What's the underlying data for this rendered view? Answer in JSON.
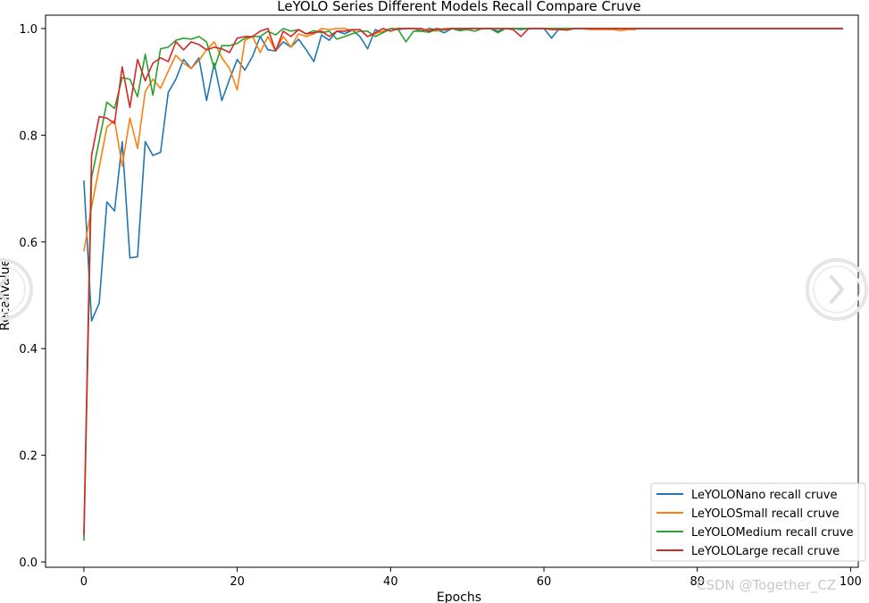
{
  "chart_data": {
    "type": "line",
    "title": "LeYOLO Series Different Models Recall Compare Cruve",
    "xlabel": "Epochs",
    "ylabel": "RecallValue",
    "xlim": [
      -5,
      101
    ],
    "ylim": [
      -0.01,
      1.025
    ],
    "xticks": [
      0,
      20,
      40,
      60,
      80,
      100
    ],
    "xtick_labels": [
      "0",
      "20",
      "40",
      "60",
      "80",
      "100"
    ],
    "yticks": [
      0.0,
      0.2,
      0.4,
      0.6,
      0.8,
      1.0
    ],
    "ytick_labels": [
      "0.0",
      "0.2",
      "0.4",
      "0.6",
      "0.8",
      "1.0"
    ],
    "grid": false,
    "legend_position": "lower-right",
    "series": [
      {
        "name": "LeYOLONano recall cruve",
        "color": "#1f77b4",
        "x": [
          0,
          1,
          2,
          3,
          4,
          5,
          6,
          7,
          8,
          9,
          10,
          11,
          12,
          13,
          14,
          15,
          16,
          17,
          18,
          19,
          20,
          21,
          22,
          23,
          24,
          25,
          26,
          27,
          28,
          29,
          30,
          31,
          32,
          33,
          34,
          35,
          36,
          37,
          38,
          39,
          40,
          41,
          42,
          43,
          44,
          45,
          46,
          47,
          48,
          49,
          50,
          51,
          52,
          53,
          54,
          55,
          56,
          57,
          58,
          59,
          60,
          61,
          62,
          63,
          64,
          65,
          66,
          67,
          68,
          69,
          70,
          71,
          72,
          73,
          74,
          75,
          76,
          77,
          78,
          79,
          80,
          81,
          82,
          83,
          84,
          85,
          86,
          87,
          88,
          89,
          90,
          91,
          92,
          93,
          94,
          95,
          96,
          97,
          98,
          99
        ],
        "values": [
          0.715,
          0.452,
          0.485,
          0.675,
          0.658,
          0.788,
          0.57,
          0.572,
          0.788,
          0.762,
          0.768,
          0.88,
          0.905,
          0.942,
          0.925,
          0.945,
          0.865,
          0.935,
          0.865,
          0.905,
          0.942,
          0.922,
          0.948,
          0.985,
          0.96,
          0.958,
          0.975,
          0.965,
          0.98,
          0.96,
          0.938,
          0.988,
          0.978,
          0.995,
          0.99,
          0.997,
          0.985,
          0.962,
          0.998,
          0.992,
          1.0,
          0.998,
          1.0,
          1.0,
          0.995,
          1.0,
          0.998,
          0.992,
          1.0,
          0.998,
          1.0,
          1.0,
          1.0,
          1.0,
          0.995,
          1.0,
          1.0,
          0.998,
          1.0,
          1.0,
          1.0,
          0.982,
          1.0,
          1.0,
          1.0,
          1.0,
          1.0,
          1.0,
          1.0,
          1.0,
          1.0,
          1.0,
          1.0,
          1.0,
          1.0,
          1.0,
          1.0,
          1.0,
          1.0,
          1.0,
          1.0,
          1.0,
          1.0,
          1.0,
          1.0,
          1.0,
          1.0,
          1.0,
          1.0,
          1.0,
          1.0,
          1.0,
          1.0,
          1.0,
          1.0,
          1.0,
          1.0,
          1.0,
          1.0,
          1.0
        ]
      },
      {
        "name": "LeYOLOSmall recall cruve",
        "color": "#ff7f0e",
        "x": [
          0,
          1,
          2,
          3,
          4,
          5,
          6,
          7,
          8,
          9,
          10,
          11,
          12,
          13,
          14,
          15,
          16,
          17,
          18,
          19,
          20,
          21,
          22,
          23,
          24,
          25,
          26,
          27,
          28,
          29,
          30,
          31,
          32,
          33,
          34,
          35,
          36,
          37,
          38,
          39,
          40,
          41,
          42,
          43,
          44,
          45,
          46,
          47,
          48,
          49,
          50,
          51,
          52,
          53,
          54,
          55,
          56,
          57,
          58,
          59,
          60,
          61,
          62,
          63,
          64,
          65,
          66,
          67,
          68,
          69,
          70,
          71,
          72
        ],
        "values": [
          0.582,
          0.665,
          0.74,
          0.815,
          0.828,
          0.742,
          0.832,
          0.775,
          0.882,
          0.905,
          0.888,
          0.92,
          0.95,
          0.935,
          0.925,
          0.94,
          0.96,
          0.975,
          0.945,
          0.925,
          0.885,
          0.978,
          0.985,
          0.955,
          0.985,
          0.958,
          0.985,
          0.965,
          0.99,
          0.985,
          0.99,
          1.0,
          0.998,
          1.0,
          1.0,
          0.996,
          0.998,
          0.985,
          0.99,
          0.995,
          1.0,
          1.0,
          1.0,
          1.0,
          0.998,
          0.998,
          0.995,
          1.0,
          1.0,
          1.0,
          1.0,
          1.0,
          1.0,
          1.0,
          1.0,
          1.0,
          1.0,
          1.0,
          1.0,
          1.0,
          1.0,
          1.0,
          1.0,
          1.0,
          1.0,
          1.0,
          0.998,
          0.998,
          0.998,
          0.998,
          0.996,
          0.998,
          0.998
        ]
      },
      {
        "name": "LeYOLOMedium recall cruve",
        "color": "#2ca02c",
        "x": [
          0,
          1,
          2,
          3,
          4,
          5,
          6,
          7,
          8,
          9,
          10,
          11,
          12,
          13,
          14,
          15,
          16,
          17,
          18,
          19,
          20,
          21,
          22,
          23,
          24,
          25,
          26,
          27,
          28,
          29,
          30,
          31,
          32,
          33,
          34,
          35,
          36,
          37,
          38,
          39,
          40,
          41,
          42,
          43,
          44,
          45,
          46,
          47,
          48,
          49,
          50,
          51,
          52,
          53,
          54,
          55,
          56,
          57,
          58,
          59,
          60,
          61,
          62,
          63,
          64,
          65,
          66,
          67,
          68,
          69,
          70,
          71,
          72,
          73,
          74,
          75,
          76,
          77,
          78,
          79,
          80,
          81,
          82,
          83,
          84,
          85,
          86,
          87,
          88,
          89,
          90,
          91,
          92,
          93,
          94,
          95,
          96,
          97,
          98,
          99
        ],
        "values": [
          0.04,
          0.72,
          0.79,
          0.862,
          0.85,
          0.908,
          0.905,
          0.872,
          0.952,
          0.875,
          0.962,
          0.965,
          0.978,
          0.982,
          0.98,
          0.985,
          0.975,
          0.925,
          0.968,
          0.968,
          0.972,
          0.982,
          0.985,
          0.985,
          0.995,
          0.988,
          1.0,
          0.995,
          0.998,
          0.99,
          0.996,
          0.992,
          0.995,
          0.98,
          0.985,
          0.99,
          0.995,
          0.995,
          0.985,
          0.992,
          1.0,
          0.998,
          0.975,
          0.995,
          0.995,
          0.993,
          0.998,
          0.997,
          1.0,
          0.996,
          0.998,
          0.995,
          1.0,
          1.0,
          0.992,
          1.0,
          1.0,
          1.0,
          1.0,
          1.0,
          1.0,
          1.0,
          1.0,
          1.0,
          1.0,
          1.0,
          1.0,
          1.0,
          1.0,
          1.0,
          1.0,
          1.0,
          1.0,
          1.0,
          1.0,
          1.0,
          1.0,
          1.0,
          1.0,
          1.0,
          1.0,
          1.0,
          1.0,
          1.0,
          1.0,
          1.0,
          1.0,
          1.0,
          1.0,
          1.0,
          1.0,
          1.0,
          1.0,
          1.0,
          1.0,
          1.0,
          1.0,
          1.0,
          1.0,
          1.0
        ]
      },
      {
        "name": "LeYOLOLarge recall cruve",
        "color": "#d62728",
        "x": [
          0,
          1,
          2,
          3,
          4,
          5,
          6,
          7,
          8,
          9,
          10,
          11,
          12,
          13,
          14,
          15,
          16,
          17,
          18,
          19,
          20,
          21,
          22,
          23,
          24,
          25,
          26,
          27,
          28,
          29,
          30,
          31,
          32,
          33,
          34,
          35,
          36,
          37,
          38,
          39,
          40,
          41,
          42,
          43,
          44,
          45,
          46,
          47,
          48,
          49,
          50,
          51,
          52,
          53,
          54,
          55,
          56,
          57,
          58,
          59,
          60,
          61,
          62,
          63,
          64,
          65,
          66,
          67,
          68,
          69,
          70,
          71,
          72,
          73,
          74,
          75,
          76,
          77,
          78,
          79,
          80,
          81,
          82,
          83,
          84,
          85,
          86,
          87,
          88,
          89,
          90,
          91,
          92,
          93,
          94,
          95,
          96,
          97,
          98,
          99
        ],
        "values": [
          0.05,
          0.762,
          0.835,
          0.832,
          0.822,
          0.928,
          0.852,
          0.942,
          0.902,
          0.935,
          0.945,
          0.938,
          0.975,
          0.96,
          0.975,
          0.97,
          0.96,
          0.965,
          0.962,
          0.955,
          0.982,
          0.985,
          0.985,
          0.995,
          1.0,
          0.958,
          0.995,
          0.985,
          0.998,
          0.99,
          0.992,
          0.995,
          0.985,
          0.995,
          0.995,
          0.998,
          0.998,
          0.985,
          0.992,
          1.0,
          0.995,
          1.0,
          1.0,
          1.0,
          1.0,
          0.995,
          1.0,
          0.998,
          1.0,
          1.0,
          1.0,
          1.0,
          1.0,
          1.0,
          1.0,
          1.0,
          0.998,
          0.985,
          1.0,
          1.0,
          1.0,
          0.998,
          0.998,
          0.997,
          1.0,
          1.0,
          1.0,
          1.0,
          1.0,
          1.0,
          1.0,
          1.0,
          1.0,
          1.0,
          1.0,
          1.0,
          1.0,
          1.0,
          1.0,
          1.0,
          1.0,
          1.0,
          1.0,
          1.0,
          1.0,
          1.0,
          1.0,
          1.0,
          1.0,
          1.0,
          1.0,
          1.0,
          1.0,
          1.0,
          1.0,
          1.0,
          1.0,
          1.0,
          1.0,
          1.0
        ]
      }
    ]
  },
  "watermark": "CSDN @Together_CZ",
  "nav": {
    "prev_icon": "chevron-left-icon",
    "next_icon": "chevron-right-icon"
  }
}
